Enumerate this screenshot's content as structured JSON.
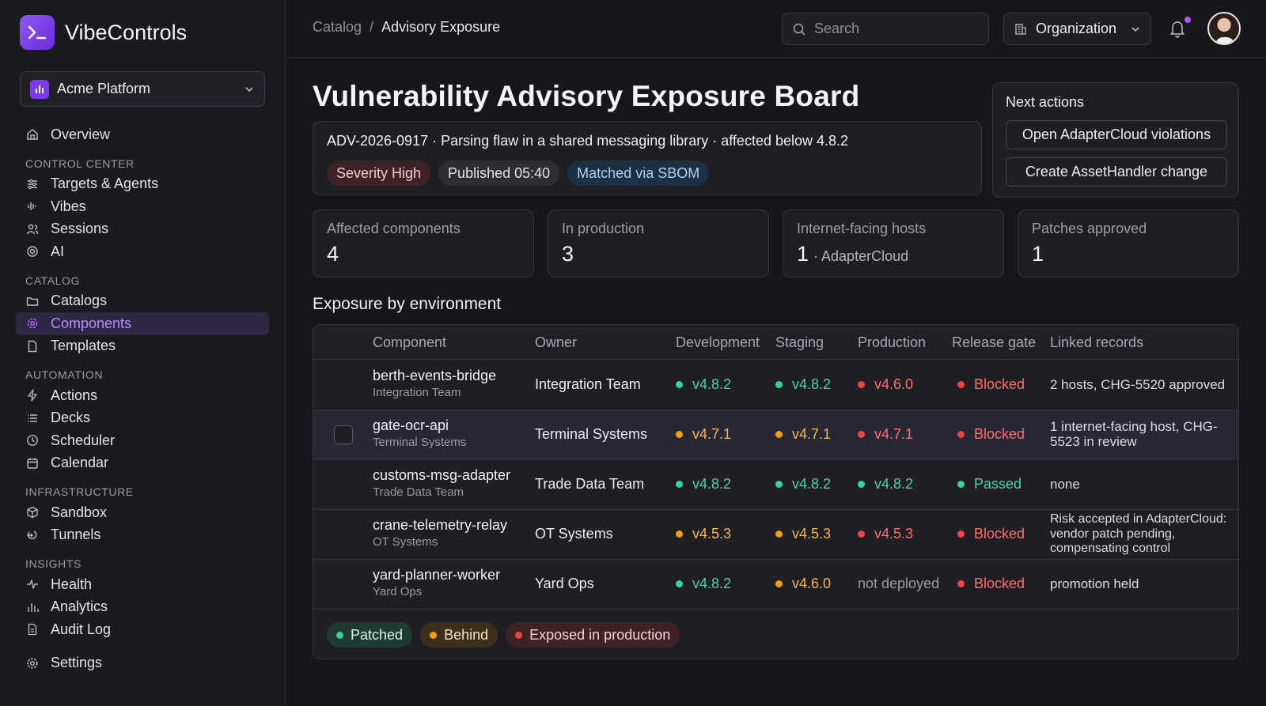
{
  "brand": {
    "name": "VibeControls"
  },
  "org_selector": {
    "label": "Acme Platform"
  },
  "nav": {
    "overview": "Overview",
    "sections": {
      "control": "CONTROL CENTER",
      "catalog": "CATALOG",
      "automation": "AUTOMATION",
      "infrastructure": "INFRASTRUCTURE",
      "insights": "INSIGHTS"
    },
    "items": {
      "targets": "Targets & Agents",
      "vibes": "Vibes",
      "sessions": "Sessions",
      "ai": "AI",
      "catalogs": "Catalogs",
      "components": "Components",
      "templates": "Templates",
      "actions": "Actions",
      "decks": "Decks",
      "scheduler": "Scheduler",
      "calendar": "Calendar",
      "sandbox": "Sandbox",
      "tunnels": "Tunnels",
      "health": "Health",
      "analytics": "Analytics",
      "audit": "Audit Log",
      "settings": "Settings"
    }
  },
  "topbar": {
    "breadcrumb": {
      "parent": "Catalog",
      "separator": "/",
      "current": "Advisory Exposure"
    },
    "search_placeholder": "Search",
    "org_button": "Organization"
  },
  "page": {
    "title": "Vulnerability Advisory Exposure Board",
    "advisory": {
      "text": "ADV-2026-0917 · Parsing flaw in a shared messaging library · affected below 4.8.2",
      "tags": {
        "severity": "Severity High",
        "published": "Published 05:40",
        "matched": "Matched via SBOM"
      }
    },
    "next_actions": {
      "title": "Next actions",
      "open": "Open AdapterCloud violations",
      "create": "Create AssetHandler change"
    },
    "stats": {
      "affected": {
        "label": "Affected components",
        "value": "4"
      },
      "production": {
        "label": "In production",
        "value": "3"
      },
      "internet": {
        "label": "Internet-facing hosts",
        "value": "1",
        "sub": "· AdapterCloud"
      },
      "patches": {
        "label": "Patches approved",
        "value": "1"
      }
    },
    "exposure": {
      "title": "Exposure by environment",
      "columns": {
        "component": "Component",
        "owner": "Owner",
        "development": "Development",
        "staging": "Staging",
        "production": "Production",
        "gate": "Release gate",
        "linked": "Linked records"
      },
      "rows": [
        {
          "name": "berth-events-bridge",
          "team": "Integration Team",
          "owner": "Integration Team",
          "dev": "v4.8.2",
          "staging": "v4.8.2",
          "prod": "v4.6.0",
          "gate": "Blocked",
          "linked": "2 hosts, CHG-5520 approved"
        },
        {
          "name": "gate-ocr-api",
          "team": "Terminal Systems",
          "owner": "Terminal Systems",
          "dev": "v4.7.1",
          "staging": "v4.7.1",
          "prod": "v4.7.1",
          "gate": "Blocked",
          "linked": "1 internet-facing host, CHG-5523 in review"
        },
        {
          "name": "customs-msg-adapter",
          "team": "Trade Data Team",
          "owner": "Trade Data Team",
          "dev": "v4.8.2",
          "staging": "v4.8.2",
          "prod": "v4.8.2",
          "gate": "Passed",
          "linked": "none"
        },
        {
          "name": "crane-telemetry-relay",
          "team": "OT Systems",
          "owner": "OT Systems",
          "dev": "v4.5.3",
          "staging": "v4.5.3",
          "prod": "v4.5.3",
          "gate": "Blocked",
          "linked": "Risk accepted in AdapterCloud: vendor patch pending, compensating control"
        },
        {
          "name": "yard-planner-worker",
          "team": "Yard Ops",
          "owner": "Yard Ops",
          "dev": "v4.8.2",
          "staging": "v4.6.0",
          "prod": "not deployed",
          "gate": "Blocked",
          "linked": "promotion held"
        }
      ],
      "legend": {
        "patched": "Patched",
        "behind": "Behind",
        "exposed": "Exposed in production"
      }
    }
  },
  "colors": {
    "accent": "#8b5cf6",
    "green": "#34d399",
    "amber": "#f59e0b",
    "red": "#ef4444"
  }
}
